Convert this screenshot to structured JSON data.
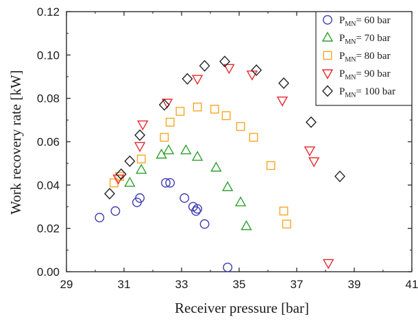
{
  "chart_data": {
    "type": "scatter",
    "xlabel": "Receiver pressure [bar]",
    "ylabel": "Work recovery rate [kW]",
    "xlim": [
      29,
      41
    ],
    "ylim": [
      0.0,
      0.12
    ],
    "xticks": [
      "29",
      "31",
      "33",
      "35",
      "37",
      "39",
      "41"
    ],
    "yticks": [
      "0.00",
      "0.02",
      "0.04",
      "0.06",
      "0.08",
      "0.10",
      "0.12"
    ],
    "grid": false,
    "legend_position": "top-right",
    "series": [
      {
        "name_main": "P",
        "name_sub": "MN",
        "name_rest": "= 60 bar",
        "marker": "circle",
        "color": "#3a3ab0",
        "points": [
          [
            30.15,
            0.025
          ],
          [
            30.7,
            0.028
          ],
          [
            31.45,
            0.032
          ],
          [
            31.55,
            0.034
          ],
          [
            32.45,
            0.041
          ],
          [
            32.6,
            0.041
          ],
          [
            33.1,
            0.034
          ],
          [
            33.4,
            0.03
          ],
          [
            33.55,
            0.029
          ],
          [
            33.5,
            0.028
          ],
          [
            33.8,
            0.022
          ],
          [
            34.6,
            0.002
          ]
        ]
      },
      {
        "name_main": "P",
        "name_sub": "MN",
        "name_rest": "= 70 bar",
        "marker": "triangle-up",
        "color": "#2ca02c",
        "points": [
          [
            31.2,
            0.041
          ],
          [
            31.6,
            0.047
          ],
          [
            32.3,
            0.054
          ],
          [
            32.55,
            0.056
          ],
          [
            33.15,
            0.056
          ],
          [
            33.55,
            0.053
          ],
          [
            34.2,
            0.048
          ],
          [
            34.6,
            0.039
          ],
          [
            35.05,
            0.032
          ],
          [
            35.25,
            0.021
          ]
        ]
      },
      {
        "name_main": "P",
        "name_sub": "MN",
        "name_rest": "= 80 bar",
        "marker": "square",
        "color": "#f5a623",
        "points": [
          [
            30.65,
            0.041
          ],
          [
            30.85,
            0.044
          ],
          [
            31.6,
            0.052
          ],
          [
            32.4,
            0.062
          ],
          [
            32.6,
            0.069
          ],
          [
            32.95,
            0.074
          ],
          [
            33.55,
            0.076
          ],
          [
            34.15,
            0.075
          ],
          [
            34.55,
            0.072
          ],
          [
            35.05,
            0.067
          ],
          [
            35.5,
            0.062
          ],
          [
            36.1,
            0.049
          ],
          [
            36.55,
            0.028
          ],
          [
            36.65,
            0.022
          ]
        ]
      },
      {
        "name_main": "P",
        "name_sub": "MN",
        "name_rest": "= 90 bar",
        "marker": "triangle-down",
        "color": "#e8262b",
        "points": [
          [
            30.8,
            0.043
          ],
          [
            31.55,
            0.058
          ],
          [
            31.65,
            0.068
          ],
          [
            32.5,
            0.078
          ],
          [
            33.55,
            0.089
          ],
          [
            34.65,
            0.094
          ],
          [
            35.45,
            0.091
          ],
          [
            36.5,
            0.079
          ],
          [
            37.45,
            0.056
          ],
          [
            37.6,
            0.051
          ],
          [
            38.1,
            0.004
          ]
        ]
      },
      {
        "name_main": "P",
        "name_sub": "MN",
        "name_rest": "= 100 bar",
        "marker": "diamond",
        "color": "#222222",
        "points": [
          [
            30.5,
            0.036
          ],
          [
            30.9,
            0.045
          ],
          [
            31.2,
            0.051
          ],
          [
            31.55,
            0.063
          ],
          [
            32.4,
            0.077
          ],
          [
            33.2,
            0.089
          ],
          [
            33.8,
            0.095
          ],
          [
            34.5,
            0.097
          ],
          [
            35.6,
            0.093
          ],
          [
            36.55,
            0.087
          ],
          [
            37.5,
            0.069
          ],
          [
            38.5,
            0.044
          ]
        ]
      }
    ]
  }
}
